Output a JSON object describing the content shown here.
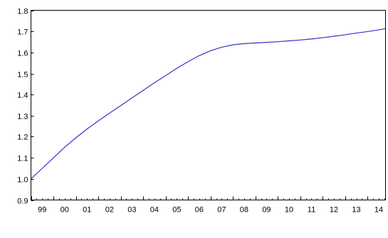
{
  "chart_data": {
    "type": "line",
    "title": "",
    "xlabel": "",
    "ylabel": "",
    "x_tick_labels": [
      "99",
      "00",
      "01",
      "02",
      "03",
      "04",
      "05",
      "06",
      "07",
      "08",
      "09",
      "10",
      "11",
      "12",
      "13",
      "14"
    ],
    "y_tick_labels": [
      "0.9",
      "1.0",
      "1.1",
      "1.2",
      "1.3",
      "1.4",
      "1.5",
      "1.6",
      "1.7",
      "1.8"
    ],
    "xlim": [
      1999,
      2014.8
    ],
    "ylim": [
      0.9,
      1.8
    ],
    "grid": false,
    "line_color": "#3333cc",
    "series": [
      {
        "x": [
          1999.0,
          1999.5,
          2000.0,
          2000.5,
          2001.0,
          2001.5,
          2002.0,
          2002.5,
          2003.0,
          2003.5,
          2004.0,
          2004.5,
          2005.0,
          2005.5,
          2006.0,
          2006.5,
          2007.0,
          2007.5,
          2008.0,
          2008.5,
          2009.0,
          2009.5,
          2010.0,
          2010.5,
          2011.0,
          2011.5,
          2012.0,
          2012.5,
          2013.0,
          2013.5,
          2014.0,
          2014.5,
          2014.8
        ],
        "y": [
          1.0,
          1.05,
          1.1,
          1.15,
          1.195,
          1.237,
          1.275,
          1.312,
          1.348,
          1.384,
          1.42,
          1.456,
          1.49,
          1.525,
          1.556,
          1.585,
          1.608,
          1.625,
          1.636,
          1.642,
          1.645,
          1.648,
          1.651,
          1.655,
          1.659,
          1.664,
          1.67,
          1.677,
          1.684,
          1.692,
          1.699,
          1.707,
          1.713
        ]
      }
    ]
  }
}
